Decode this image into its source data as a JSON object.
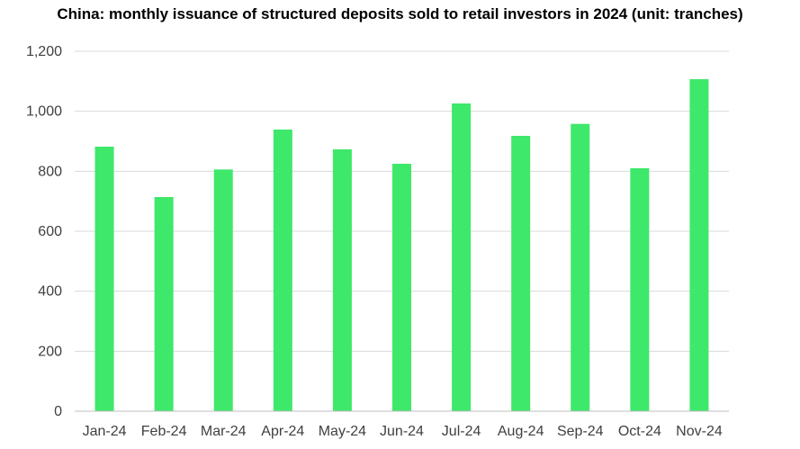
{
  "chart_data": {
    "type": "bar",
    "title": "China: monthly issuance of structured deposits sold to retail investors in 2024 (unit: tranches)",
    "xlabel": "",
    "ylabel": "",
    "categories": [
      "Jan-24",
      "Feb-24",
      "Mar-24",
      "Apr-24",
      "May-24",
      "Jun-24",
      "Jul-24",
      "Aug-24",
      "Sep-24",
      "Oct-24",
      "Nov-24"
    ],
    "values": [
      882,
      714,
      806,
      939,
      873,
      825,
      1026,
      918,
      958,
      810,
      1107
    ],
    "ylim": [
      0,
      1200
    ],
    "yticks": [
      "0",
      "200",
      "400",
      "600",
      "800",
      "1,000",
      "1,200"
    ],
    "grid": true,
    "legend": "none",
    "bar_color": "#3ee86a",
    "grid_color": "#d9d9d9",
    "axis_color": "#bfbfbf"
  }
}
